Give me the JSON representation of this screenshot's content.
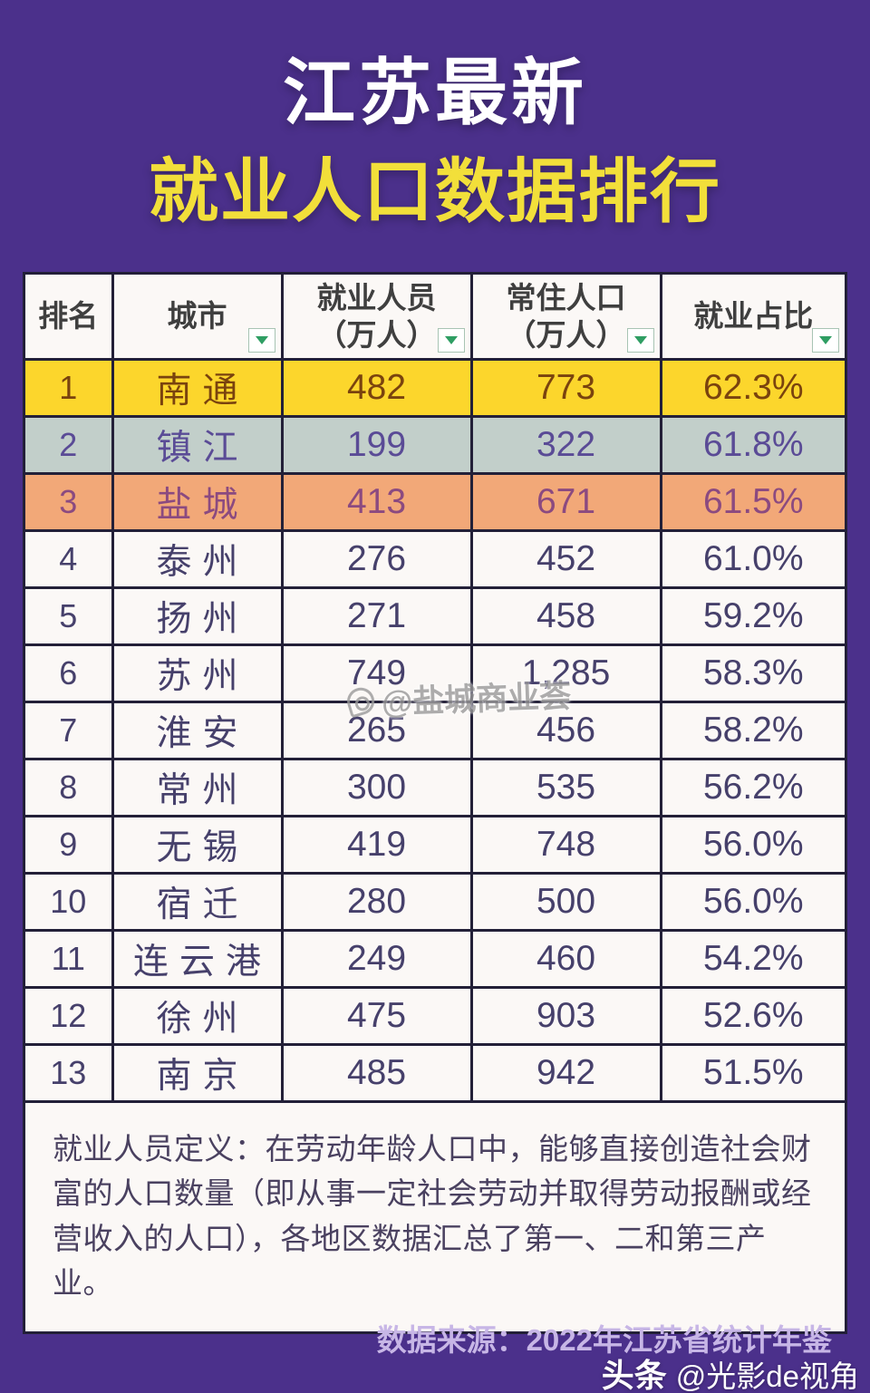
{
  "title": {
    "line1": "江苏最新",
    "line2": "就业人口数据排行"
  },
  "table": {
    "columns": [
      {
        "label": "排名",
        "filter": false
      },
      {
        "label": "城市",
        "filter": true
      },
      {
        "label": "就业人员\n（万人）",
        "filter": true
      },
      {
        "label": "常住人口\n（万人）",
        "filter": true
      },
      {
        "label": "就业占比",
        "filter": true
      }
    ],
    "rows": [
      {
        "rank": "1",
        "city": "南通",
        "employed": "482",
        "resident": "773",
        "ratio": "62.3%",
        "highlight": "gold"
      },
      {
        "rank": "2",
        "city": "镇江",
        "employed": "199",
        "resident": "322",
        "ratio": "61.8%",
        "highlight": "silver"
      },
      {
        "rank": "3",
        "city": "盐城",
        "employed": "413",
        "resident": "671",
        "ratio": "61.5%",
        "highlight": "bronze"
      },
      {
        "rank": "4",
        "city": "泰州",
        "employed": "276",
        "resident": "452",
        "ratio": "61.0%",
        "highlight": null
      },
      {
        "rank": "5",
        "city": "扬州",
        "employed": "271",
        "resident": "458",
        "ratio": "59.2%",
        "highlight": null
      },
      {
        "rank": "6",
        "city": "苏州",
        "employed": "749",
        "resident": "1,285",
        "ratio": "58.3%",
        "highlight": null
      },
      {
        "rank": "7",
        "city": "淮安",
        "employed": "265",
        "resident": "456",
        "ratio": "58.2%",
        "highlight": null
      },
      {
        "rank": "8",
        "city": "常州",
        "employed": "300",
        "resident": "535",
        "ratio": "56.2%",
        "highlight": null
      },
      {
        "rank": "9",
        "city": "无锡",
        "employed": "419",
        "resident": "748",
        "ratio": "56.0%",
        "highlight": null
      },
      {
        "rank": "10",
        "city": "宿迁",
        "employed": "280",
        "resident": "500",
        "ratio": "56.0%",
        "highlight": null
      },
      {
        "rank": "11",
        "city": "连云港",
        "employed": "249",
        "resident": "460",
        "ratio": "54.2%",
        "highlight": null
      },
      {
        "rank": "12",
        "city": "徐州",
        "employed": "475",
        "resident": "903",
        "ratio": "52.6%",
        "highlight": null
      },
      {
        "rank": "13",
        "city": "南京",
        "employed": "485",
        "resident": "942",
        "ratio": "51.5%",
        "highlight": null
      }
    ]
  },
  "note": {
    "text": "就业人员定义：在劳动年龄人口中，能够直接创造社会财富的人口数量（即从事一定社会劳动并取得劳动报酬或经营收入的人口），各地区数据汇总了第一、二和第三产业。"
  },
  "source": {
    "text": "数据来源：2022年江苏省统计年鉴"
  },
  "watermarks": {
    "center": "@盐城商业荟",
    "center_icon": "weibo-icon",
    "brand": "头条",
    "handle": "@光影de视角"
  },
  "colors": {
    "page_bg": "#4b308b",
    "title1": "#ffffff",
    "title2": "#f2df3a",
    "panel_bg": "#fbf8f6",
    "border": "#232038",
    "header_text": "#3f3f3f",
    "filter_green": "#2f9e63",
    "gold_bg": "#fcd62c",
    "gold_text": "#7a430e",
    "silver_bg": "#c2cfca",
    "silver_text": "#5a4b96",
    "bronze_bg": "#f2a878",
    "bronze_text": "#8b4a80",
    "row_text": "#46406b",
    "note_text": "#4a4160",
    "source_text": "#c7b6e6",
    "wm_gray": "#9a9a9a"
  },
  "chart_data": {
    "type": "table",
    "title": "江苏最新就业人口数据排行",
    "columns": [
      "排名",
      "城市",
      "就业人员（万人）",
      "常住人口（万人）",
      "就业占比"
    ],
    "rows": [
      [
        1,
        "南通",
        482,
        773,
        "62.3%"
      ],
      [
        2,
        "镇江",
        199,
        322,
        "61.8%"
      ],
      [
        3,
        "盐城",
        413,
        671,
        "61.5%"
      ],
      [
        4,
        "泰州",
        276,
        452,
        "61.0%"
      ],
      [
        5,
        "扬州",
        271,
        458,
        "59.2%"
      ],
      [
        6,
        "苏州",
        749,
        1285,
        "58.3%"
      ],
      [
        7,
        "淮安",
        265,
        456,
        "58.2%"
      ],
      [
        8,
        "常州",
        300,
        535,
        "56.2%"
      ],
      [
        9,
        "无锡",
        419,
        748,
        "56.0%"
      ],
      [
        10,
        "宿迁",
        280,
        500,
        "56.0%"
      ],
      [
        11,
        "连云港",
        249,
        460,
        "54.2%"
      ],
      [
        12,
        "徐州",
        475,
        903,
        "52.6%"
      ],
      [
        13,
        "南京",
        485,
        942,
        "51.5%"
      ]
    ],
    "source": "数据来源：2022年江苏省统计年鉴"
  }
}
